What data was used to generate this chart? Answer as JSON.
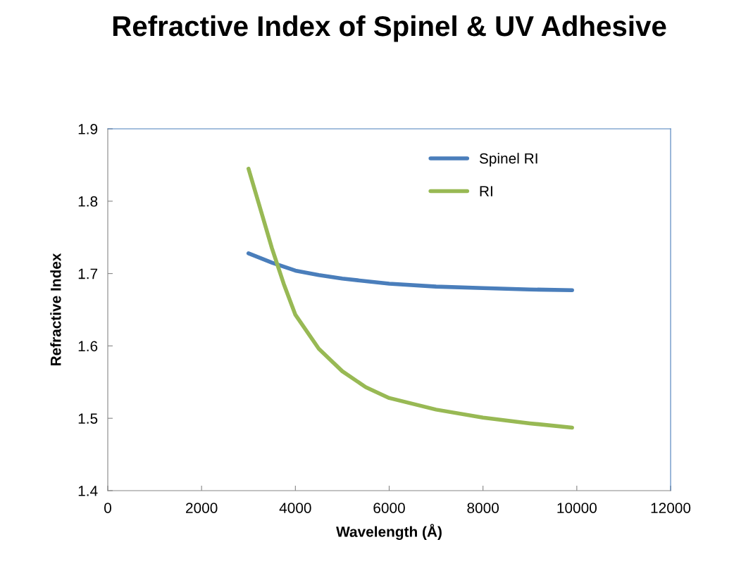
{
  "chart_data": {
    "type": "line",
    "title": "Refractive Index of Spinel & UV Adhesive",
    "xlabel": "Wavelength (Å)",
    "ylabel": "Refractive Index",
    "xlim": [
      0,
      12000
    ],
    "xticks": [
      0,
      2000,
      4000,
      6000,
      8000,
      10000,
      12000
    ],
    "ylim": [
      1.4,
      1.9
    ],
    "yticks": [
      1.4,
      1.5,
      1.6,
      1.7,
      1.8,
      1.9
    ],
    "grid": false,
    "legend": "top right",
    "marker": "none",
    "line_style": "solid",
    "series": [
      {
        "name": "Spinel RI",
        "color": "#4a7ebb",
        "x": [
          3000,
          3500,
          4000,
          4500,
          5000,
          6000,
          7000,
          8000,
          9000,
          9900
        ],
        "values": [
          1.728,
          1.715,
          1.704,
          1.698,
          1.693,
          1.686,
          1.682,
          1.68,
          1.678,
          1.677
        ]
      },
      {
        "name": "RI",
        "color": "#98b954",
        "x": [
          3000,
          3250,
          3500,
          3750,
          4000,
          4500,
          5000,
          5500,
          6000,
          7000,
          8000,
          9000,
          9900
        ],
        "values": [
          1.845,
          1.79,
          1.735,
          1.686,
          1.643,
          1.596,
          1.565,
          1.543,
          1.528,
          1.512,
          1.501,
          1.493,
          1.487
        ]
      }
    ]
  }
}
